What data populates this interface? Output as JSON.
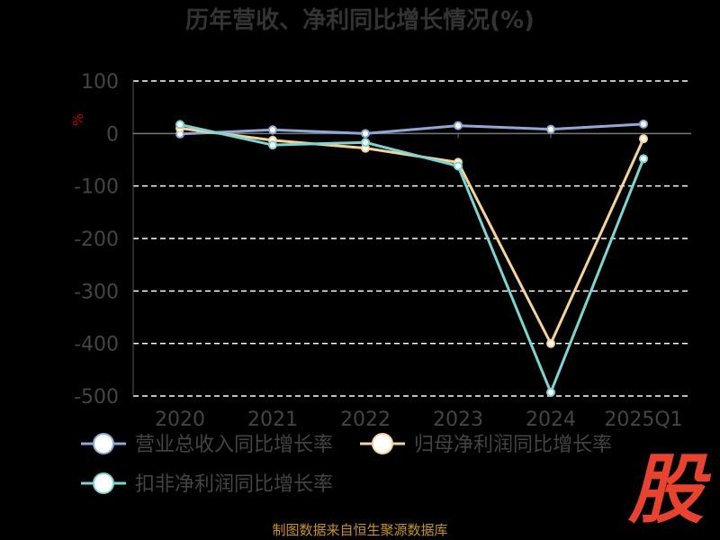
{
  "chart_data": {
    "type": "line",
    "title": "历年营收、净利同比增长情况(%)",
    "ylabel": "%",
    "categories": [
      "2020",
      "2021",
      "2022",
      "2023",
      "2024",
      "2025Q1"
    ],
    "yticks": [
      "100",
      "0",
      "-100",
      "-200",
      "-300",
      "-400",
      "-500"
    ],
    "ylim": [
      -500,
      100
    ],
    "grid": true,
    "legend_position": "bottom",
    "series": [
      {
        "name": "营业总收入同比增长率",
        "color": "#8fa8d8",
        "values": [
          -1,
          7,
          0,
          15,
          8,
          18
        ]
      },
      {
        "name": "归母净利润同比增长率",
        "color": "#f5d49a",
        "values": [
          10,
          -13,
          -28,
          -55,
          -400,
          -10
        ]
      },
      {
        "name": "扣非净利润同比增长率",
        "color": "#7fd3d3",
        "values": [
          17,
          -22,
          -17,
          -62,
          -493,
          -48
        ]
      }
    ]
  },
  "footer": "制图数据来自恒生聚源数据库",
  "logo_text": "股"
}
